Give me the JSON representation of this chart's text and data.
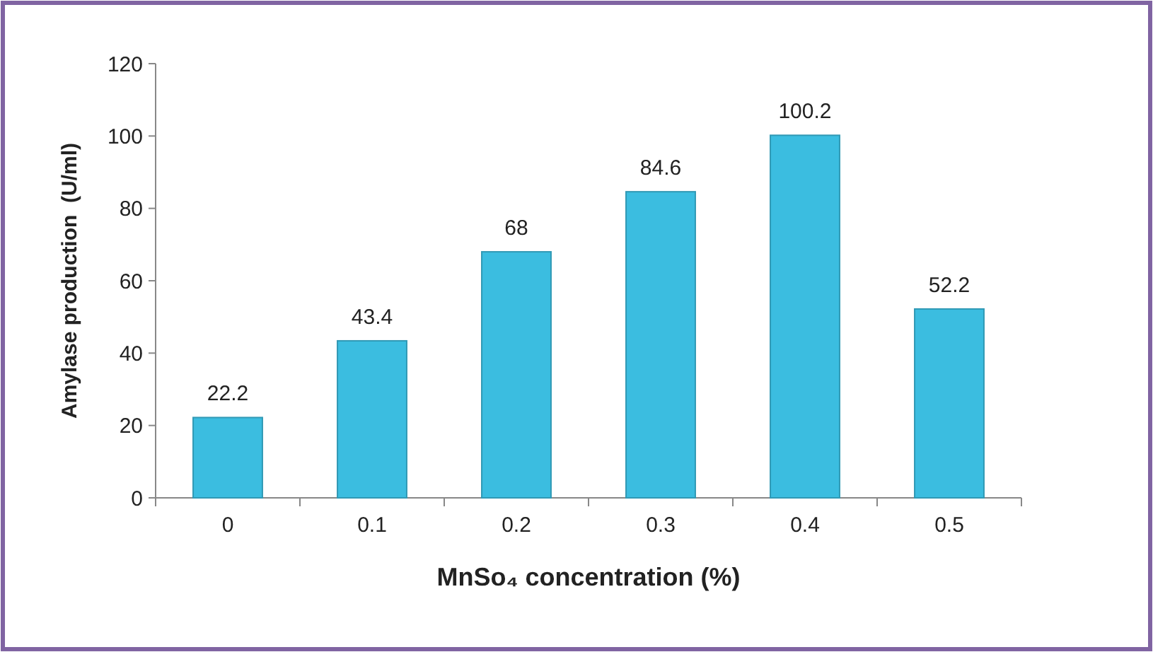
{
  "chart_data": {
    "type": "bar",
    "xlabel": "MnSo₄ concentration (%)",
    "ylabel": "Amylase production  (U/ml)",
    "categories": [
      "0",
      "0.1",
      "0.2",
      "0.3",
      "0.4",
      "0.5"
    ],
    "values": [
      22.2,
      43.4,
      68,
      84.6,
      100.2,
      52.2
    ],
    "color": "#3bbde0",
    "ylim": [
      0,
      120
    ],
    "yticks": [
      0,
      20,
      40,
      60,
      80,
      100,
      120
    ],
    "data_labels": true,
    "grid": false
  }
}
